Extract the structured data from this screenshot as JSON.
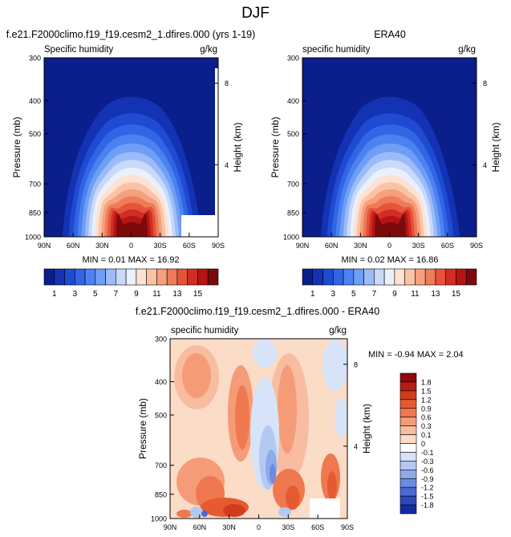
{
  "figure": {
    "title": "DJF"
  },
  "panels": [
    {
      "title": "f.e21.F2000climo.f19_f19.cesm2_1.dfires.000 (yrs 1-19)",
      "left_label": "Specific humidity",
      "right_label": "g/kg",
      "min_max": "MIN =  0.01  MAX = 16.92"
    },
    {
      "title": "ERA40",
      "left_label": "specific humidity",
      "right_label": "g/kg",
      "min_max": "MIN =  0.02  MAX = 16.86"
    },
    {
      "title": "f.e21.F2000climo.f19_f19.cesm2_1.dfires.000 - ERA40",
      "left_label": "specific humidity",
      "right_label": "g/kg",
      "min_max": "MIN =  -0.94  MAX =  2.04"
    }
  ],
  "axes": {
    "ylabel": "Pressure (mb)",
    "ylabel_right": "Height (km)",
    "pressure_ticks": [
      "300",
      "400",
      "500",
      "700",
      "850",
      "1000"
    ],
    "height_ticks": [
      "8",
      "4"
    ],
    "lat_ticks": [
      "90N",
      "60N",
      "30N",
      "0",
      "30S",
      "60S",
      "90S"
    ]
  },
  "colorbars": {
    "humidity": {
      "labels": [
        "1",
        "3",
        "5",
        "7",
        "9",
        "11",
        "13",
        "15"
      ],
      "colors": [
        "#0a1e8c",
        "#1432b4",
        "#1e4bd2",
        "#3264e6",
        "#4b82f0",
        "#6e9ef5",
        "#9bbcf8",
        "#c8d9fa",
        "#eaf0fc",
        "#fde2d2",
        "#fbc3a6",
        "#f6a07e",
        "#ef7b58",
        "#e4533a",
        "#d22d23",
        "#b41414",
        "#7d0a0a"
      ]
    },
    "difference": {
      "labels": [
        "1.8",
        "1.5",
        "1.2",
        "0.9",
        "0.6",
        "0.3",
        "0.1",
        "0",
        "-0.1",
        "-0.3",
        "-0.6",
        "-0.9",
        "-1.2",
        "-1.5",
        "-1.8"
      ],
      "colors": [
        "#8c0a0a",
        "#b41e14",
        "#d23c1e",
        "#e65a32",
        "#f07850",
        "#f59b78",
        "#f8bda0",
        "#fbdcc6",
        "#ffffff",
        "#d6e3f8",
        "#b3c9f2",
        "#8eabe8",
        "#6b8ce0",
        "#4a69d2",
        "#2d48bf",
        "#142ca0"
      ]
    }
  },
  "chart_data": [
    {
      "type": "heatmap",
      "title": "f.e21.F2000climo.f19_f19.cesm2_1.dfires.000 (yrs 1-19)",
      "xlabel": "",
      "ylabel": "Pressure (mb)",
      "x_ticks": [
        "90N",
        "60N",
        "30N",
        "0",
        "30S",
        "60S",
        "90S"
      ],
      "y_ticks": [
        300,
        400,
        500,
        700,
        850,
        1000
      ],
      "ylim": [
        1000,
        300
      ],
      "levels": [
        1,
        3,
        5,
        7,
        9,
        11,
        13,
        15
      ],
      "min": 0.01,
      "max": 16.92
    },
    {
      "type": "heatmap",
      "title": "ERA40",
      "xlabel": "",
      "ylabel": "Pressure (mb)",
      "x_ticks": [
        "90N",
        "60N",
        "30N",
        "0",
        "30S",
        "60S",
        "90S"
      ],
      "y_ticks": [
        300,
        400,
        500,
        700,
        850,
        1000
      ],
      "ylim": [
        1000,
        300
      ],
      "levels": [
        1,
        3,
        5,
        7,
        9,
        11,
        13,
        15
      ],
      "min": 0.02,
      "max": 16.86
    },
    {
      "type": "heatmap",
      "title": "f.e21.F2000climo.f19_f19.cesm2_1.dfires.000 - ERA40",
      "xlabel": "",
      "ylabel": "Pressure (mb)",
      "x_ticks": [
        "90N",
        "60N",
        "30N",
        "0",
        "30S",
        "60S",
        "90S"
      ],
      "y_ticks": [
        300,
        400,
        500,
        700,
        850,
        1000
      ],
      "ylim": [
        1000,
        300
      ],
      "levels": [
        -1.8,
        -1.5,
        -1.2,
        -0.9,
        -0.6,
        -0.3,
        -0.1,
        0,
        0.1,
        0.3,
        0.6,
        0.9,
        1.2,
        1.5,
        1.8
      ],
      "min": -0.94,
      "max": 2.04
    }
  ]
}
